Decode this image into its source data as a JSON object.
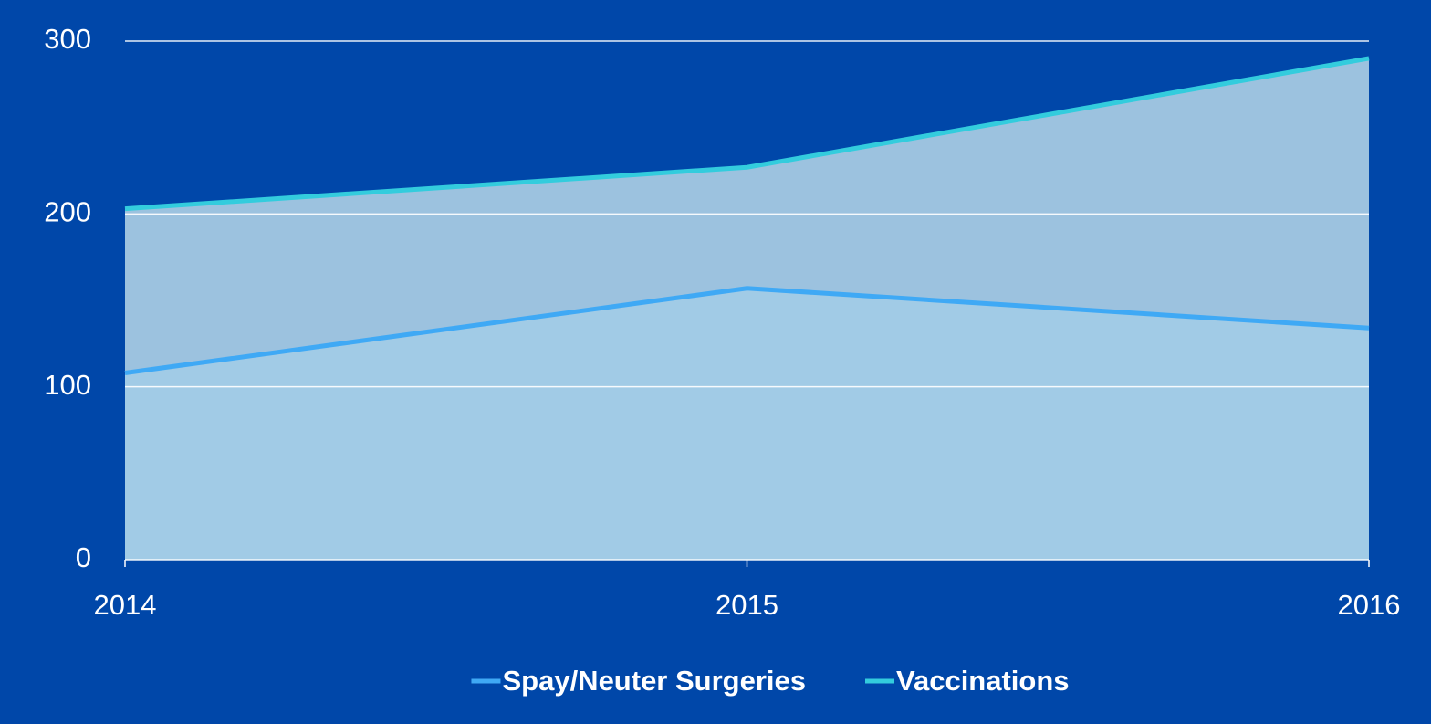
{
  "chart_data": {
    "type": "area",
    "categories": [
      "2014",
      "2015",
      "2016"
    ],
    "series": [
      {
        "name": "Spay/Neuter Surgeries",
        "color": "#3fa9f5",
        "fill": "#a2cce8",
        "values": [
          108,
          157,
          134
        ]
      },
      {
        "name": "Vaccinations",
        "color": "#33ccdd",
        "fill": "#9cc2df",
        "values": [
          203,
          227,
          290
        ]
      }
    ],
    "ylim": [
      0,
      300
    ],
    "yticks": [
      0,
      100,
      200,
      300
    ],
    "grid": true,
    "legend": "bottom"
  }
}
